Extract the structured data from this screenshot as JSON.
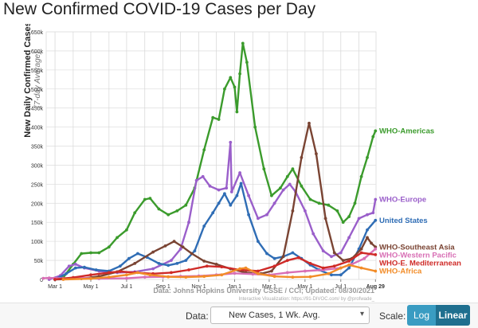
{
  "title": "New Confirmed COVID-19 Cases per Day",
  "controls": {
    "data_label": "Data:",
    "data_value": "New Cases, 1 Wk. Avg.",
    "scale_label": "Scale:",
    "log_label": "Log",
    "linear_label": "Linear"
  },
  "chart_data": {
    "type": "line",
    "ylabel": "New Daily Confirmed Cases",
    "ylabel_sub": "(7-day Average)",
    "ylim": [
      0,
      650000
    ],
    "yticks": [
      {
        "v": 0,
        "label": "0"
      },
      {
        "v": 50000,
        "label": "50k"
      },
      {
        "v": 100000,
        "label": "100k"
      },
      {
        "v": 150000,
        "label": "150k"
      },
      {
        "v": 200000,
        "label": "200k"
      },
      {
        "v": 250000,
        "label": "250k"
      },
      {
        "v": 300000,
        "label": "300k"
      },
      {
        "v": 350000,
        "label": "350k"
      },
      {
        "v": 400000,
        "label": "400k"
      },
      {
        "v": 450000,
        "label": "450k"
      },
      {
        "v": 500000,
        "label": "500k"
      },
      {
        "v": 550000,
        "label": "550k"
      },
      {
        "v": 600000,
        "label": "600k"
      },
      {
        "v": 650000,
        "label": "650k"
      }
    ],
    "xlim": [
      "2020-02-15",
      "2021-08-30"
    ],
    "xticks": [
      {
        "date": "2020-03-01",
        "label": "Mar 1"
      },
      {
        "date": "2020-05-01",
        "label": "May 1"
      },
      {
        "date": "2020-07-01",
        "label": "Jul 1"
      },
      {
        "date": "2020-09-01",
        "label": "Sep 1"
      },
      {
        "date": "2020-11-01",
        "label": "Nov 1"
      },
      {
        "date": "2021-01-01",
        "label": "Jan 1"
      },
      {
        "date": "2021-03-01",
        "label": "Mar 1"
      },
      {
        "date": "2021-05-01",
        "label": "May 1"
      },
      {
        "date": "2021-07-01",
        "label": "Jul 1"
      },
      {
        "date": "2021-08-29",
        "label": "Aug 29"
      }
    ],
    "source": "Data: Johns Hopkins University CSSE / CCI; Updated: 08/30/2021",
    "credit": "Interactive Visualization: https://91-DIVOC.com/ by @profwade_",
    "series": [
      {
        "name": "WHO-Americas",
        "color": "#3b9b2c",
        "points": [
          [
            "2020-03-01",
            0
          ],
          [
            "2020-03-15",
            5000
          ],
          [
            "2020-04-01",
            40000
          ],
          [
            "2020-04-15",
            68000
          ],
          [
            "2020-05-01",
            70000
          ],
          [
            "2020-05-15",
            70000
          ],
          [
            "2020-06-01",
            85000
          ],
          [
            "2020-06-15",
            110000
          ],
          [
            "2020-07-01",
            130000
          ],
          [
            "2020-07-15",
            175000
          ],
          [
            "2020-08-01",
            210000
          ],
          [
            "2020-08-10",
            213000
          ],
          [
            "2020-08-25",
            185000
          ],
          [
            "2020-09-10",
            170000
          ],
          [
            "2020-09-25",
            180000
          ],
          [
            "2020-10-10",
            195000
          ],
          [
            "2020-10-25",
            240000
          ],
          [
            "2020-11-10",
            340000
          ],
          [
            "2020-11-25",
            425000
          ],
          [
            "2020-12-05",
            420000
          ],
          [
            "2020-12-15",
            500000
          ],
          [
            "2020-12-25",
            530000
          ],
          [
            "2021-01-01",
            505000
          ],
          [
            "2021-01-05",
            440000
          ],
          [
            "2021-01-10",
            540000
          ],
          [
            "2021-01-15",
            620000
          ],
          [
            "2021-01-22",
            570000
          ],
          [
            "2021-02-05",
            400000
          ],
          [
            "2021-02-20",
            290000
          ],
          [
            "2021-03-05",
            220000
          ],
          [
            "2021-03-20",
            240000
          ],
          [
            "2021-04-01",
            270000
          ],
          [
            "2021-04-10",
            290000
          ],
          [
            "2021-04-25",
            245000
          ],
          [
            "2021-05-10",
            210000
          ],
          [
            "2021-05-25",
            200000
          ],
          [
            "2021-06-10",
            195000
          ],
          [
            "2021-06-25",
            180000
          ],
          [
            "2021-07-05",
            150000
          ],
          [
            "2021-07-15",
            165000
          ],
          [
            "2021-07-25",
            200000
          ],
          [
            "2021-08-05",
            270000
          ],
          [
            "2021-08-15",
            320000
          ],
          [
            "2021-08-25",
            375000
          ],
          [
            "2021-08-29",
            390000
          ]
        ]
      },
      {
        "name": "WHO-Europe",
        "color": "#9a5fca",
        "points": [
          [
            "2020-02-20",
            0
          ],
          [
            "2020-03-10",
            10000
          ],
          [
            "2020-03-25",
            35000
          ],
          [
            "2020-04-05",
            40000
          ],
          [
            "2020-04-20",
            30000
          ],
          [
            "2020-05-15",
            22000
          ],
          [
            "2020-06-15",
            18000
          ],
          [
            "2020-07-15",
            20000
          ],
          [
            "2020-08-15",
            28000
          ],
          [
            "2020-09-15",
            50000
          ],
          [
            "2020-10-01",
            80000
          ],
          [
            "2020-10-15",
            150000
          ],
          [
            "2020-10-28",
            260000
          ],
          [
            "2020-11-08",
            270000
          ],
          [
            "2020-11-20",
            245000
          ],
          [
            "2020-12-05",
            235000
          ],
          [
            "2020-12-18",
            240000
          ],
          [
            "2020-12-25",
            360000
          ],
          [
            "2020-12-27",
            230000
          ],
          [
            "2021-01-10",
            280000
          ],
          [
            "2021-01-25",
            220000
          ],
          [
            "2021-02-10",
            160000
          ],
          [
            "2021-02-25",
            170000
          ],
          [
            "2021-03-10",
            200000
          ],
          [
            "2021-03-25",
            235000
          ],
          [
            "2021-04-05",
            250000
          ],
          [
            "2021-04-15",
            230000
          ],
          [
            "2021-05-01",
            180000
          ],
          [
            "2021-05-15",
            120000
          ],
          [
            "2021-06-01",
            75000
          ],
          [
            "2021-06-15",
            60000
          ],
          [
            "2021-07-01",
            70000
          ],
          [
            "2021-07-15",
            110000
          ],
          [
            "2021-08-01",
            160000
          ],
          [
            "2021-08-15",
            170000
          ],
          [
            "2021-08-25",
            175000
          ],
          [
            "2021-08-29",
            210000
          ]
        ]
      },
      {
        "name": "United States",
        "color": "#2f6db5",
        "points": [
          [
            "2020-03-01",
            0
          ],
          [
            "2020-03-20",
            15000
          ],
          [
            "2020-04-05",
            30000
          ],
          [
            "2020-04-20",
            32000
          ],
          [
            "2020-05-10",
            25000
          ],
          [
            "2020-06-01",
            22000
          ],
          [
            "2020-06-20",
            35000
          ],
          [
            "2020-07-05",
            55000
          ],
          [
            "2020-07-20",
            68000
          ],
          [
            "2020-08-05",
            58000
          ],
          [
            "2020-08-25",
            42000
          ],
          [
            "2020-09-10",
            37000
          ],
          [
            "2020-09-25",
            42000
          ],
          [
            "2020-10-10",
            50000
          ],
          [
            "2020-10-25",
            75000
          ],
          [
            "2020-11-10",
            140000
          ],
          [
            "2020-11-25",
            175000
          ],
          [
            "2020-12-05",
            200000
          ],
          [
            "2020-12-15",
            225000
          ],
          [
            "2020-12-25",
            195000
          ],
          [
            "2021-01-05",
            220000
          ],
          [
            "2021-01-12",
            252000
          ],
          [
            "2021-01-25",
            170000
          ],
          [
            "2021-02-10",
            100000
          ],
          [
            "2021-02-25",
            68000
          ],
          [
            "2021-03-10",
            55000
          ],
          [
            "2021-03-25",
            60000
          ],
          [
            "2021-04-10",
            70000
          ],
          [
            "2021-04-25",
            55000
          ],
          [
            "2021-05-10",
            38000
          ],
          [
            "2021-05-25",
            25000
          ],
          [
            "2021-06-15",
            12000
          ],
          [
            "2021-07-01",
            12000
          ],
          [
            "2021-07-15",
            30000
          ],
          [
            "2021-08-01",
            80000
          ],
          [
            "2021-08-15",
            130000
          ],
          [
            "2021-08-29",
            155000
          ]
        ]
      },
      {
        "name": "WHO-Southeast Asia",
        "color": "#7a4433",
        "points": [
          [
            "2020-03-01",
            0
          ],
          [
            "2020-04-15",
            2000
          ],
          [
            "2020-05-15",
            8000
          ],
          [
            "2020-06-15",
            20000
          ],
          [
            "2020-07-15",
            42000
          ],
          [
            "2020-08-15",
            72000
          ],
          [
            "2020-09-05",
            88000
          ],
          [
            "2020-09-20",
            100000
          ],
          [
            "2020-10-05",
            85000
          ],
          [
            "2020-10-20",
            68000
          ],
          [
            "2020-11-10",
            48000
          ],
          [
            "2020-12-01",
            40000
          ],
          [
            "2020-12-25",
            28000
          ],
          [
            "2021-01-20",
            18000
          ],
          [
            "2021-02-15",
            15000
          ],
          [
            "2021-03-05",
            22000
          ],
          [
            "2021-03-25",
            60000
          ],
          [
            "2021-04-10",
            180000
          ],
          [
            "2021-04-25",
            320000
          ],
          [
            "2021-05-08",
            410000
          ],
          [
            "2021-05-20",
            330000
          ],
          [
            "2021-06-05",
            160000
          ],
          [
            "2021-06-20",
            70000
          ],
          [
            "2021-07-05",
            50000
          ],
          [
            "2021-07-20",
            55000
          ],
          [
            "2021-08-05",
            80000
          ],
          [
            "2021-08-15",
            110000
          ],
          [
            "2021-08-22",
            95000
          ],
          [
            "2021-08-29",
            85000
          ]
        ]
      },
      {
        "name": "WHO-Western Pacific",
        "color": "#d86fb5",
        "points": [
          [
            "2020-02-10",
            3000
          ],
          [
            "2020-02-20",
            4000
          ],
          [
            "2020-03-15",
            3000
          ],
          [
            "2020-04-15",
            4000
          ],
          [
            "2020-05-15",
            2000
          ],
          [
            "2020-07-01",
            3000
          ],
          [
            "2020-08-01",
            6000
          ],
          [
            "2020-09-01",
            7000
          ],
          [
            "2020-10-01",
            8000
          ],
          [
            "2020-11-01",
            9000
          ],
          [
            "2020-12-01",
            12000
          ],
          [
            "2021-01-01",
            16000
          ],
          [
            "2021-02-01",
            14000
          ],
          [
            "2021-03-01",
            12000
          ],
          [
            "2021-04-01",
            18000
          ],
          [
            "2021-05-01",
            22000
          ],
          [
            "2021-06-01",
            25000
          ],
          [
            "2021-07-01",
            30000
          ],
          [
            "2021-07-20",
            40000
          ],
          [
            "2021-08-10",
            55000
          ],
          [
            "2021-08-29",
            80000
          ]
        ]
      },
      {
        "name": "WHO-E. Mediterranean",
        "color": "#cf2a27",
        "points": [
          [
            "2020-03-01",
            0
          ],
          [
            "2020-04-01",
            5000
          ],
          [
            "2020-05-01",
            12000
          ],
          [
            "2020-06-01",
            18000
          ],
          [
            "2020-06-20",
            21000
          ],
          [
            "2020-07-15",
            18000
          ],
          [
            "2020-08-15",
            15000
          ],
          [
            "2020-09-15",
            18000
          ],
          [
            "2020-10-15",
            25000
          ],
          [
            "2020-11-15",
            35000
          ],
          [
            "2020-12-10",
            33000
          ],
          [
            "2021-01-10",
            25000
          ],
          [
            "2021-02-10",
            22000
          ],
          [
            "2021-03-10",
            35000
          ],
          [
            "2021-04-01",
            50000
          ],
          [
            "2021-04-20",
            57000
          ],
          [
            "2021-05-10",
            42000
          ],
          [
            "2021-06-01",
            30000
          ],
          [
            "2021-06-20",
            35000
          ],
          [
            "2021-07-15",
            48000
          ],
          [
            "2021-08-05",
            70000
          ],
          [
            "2021-08-29",
            65000
          ]
        ]
      },
      {
        "name": "WHO-Africa",
        "color": "#f28c28",
        "points": [
          [
            "2020-03-15",
            0
          ],
          [
            "2020-05-01",
            2000
          ],
          [
            "2020-06-01",
            6000
          ],
          [
            "2020-07-01",
            12000
          ],
          [
            "2020-07-20",
            18000
          ],
          [
            "2020-08-10",
            12000
          ],
          [
            "2020-09-10",
            7000
          ],
          [
            "2020-10-10",
            6000
          ],
          [
            "2020-11-10",
            8000
          ],
          [
            "2020-12-10",
            12000
          ],
          [
            "2021-01-10",
            28000
          ],
          [
            "2021-01-20",
            30000
          ],
          [
            "2021-02-10",
            15000
          ],
          [
            "2021-03-10",
            8000
          ],
          [
            "2021-04-10",
            6000
          ],
          [
            "2021-05-10",
            7000
          ],
          [
            "2021-06-10",
            15000
          ],
          [
            "2021-07-01",
            30000
          ],
          [
            "2021-07-15",
            38000
          ],
          [
            "2021-08-05",
            30000
          ],
          [
            "2021-08-29",
            22000
          ]
        ]
      }
    ],
    "end_labels": [
      {
        "series": 0,
        "text": "WHO-Americas"
      },
      {
        "series": 1,
        "text": "WHO-Europe"
      },
      {
        "series": 2,
        "text": "United States"
      },
      {
        "series": 3,
        "text": "WHO-Southeast Asia"
      },
      {
        "series": 4,
        "text": "WHO-Western Pacific"
      },
      {
        "series": 5,
        "text": "WHO-E. Mediterranean"
      },
      {
        "series": 6,
        "text": "WHO-Africa"
      }
    ]
  }
}
